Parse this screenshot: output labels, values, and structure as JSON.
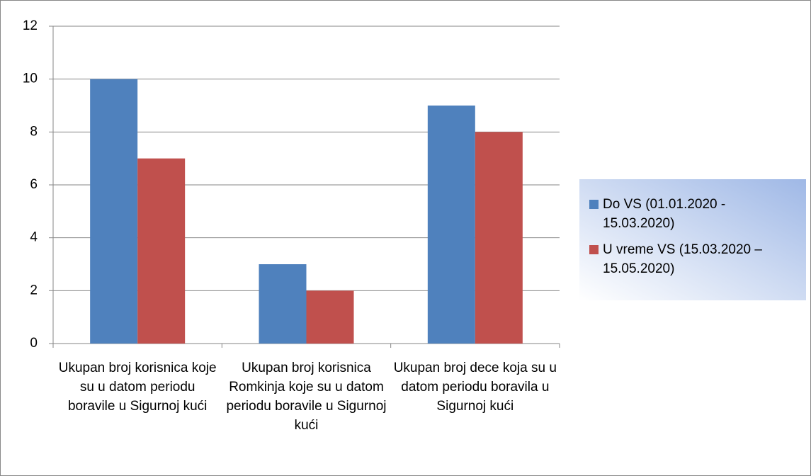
{
  "chart_data": {
    "type": "bar",
    "categories": [
      "Ukupan broj korisnica koje su u datom periodu boravile u Sigurnoj kući",
      "Ukupan broj korisnica Romkinja koje su u datom periodu boravile u Sigurnoj kući",
      "Ukupan broj dece koja su u datom periodu boravila u Sigurnoj kući"
    ],
    "series": [
      {
        "name": "Do VS (01.01.2020  - 15.03.2020)",
        "color": "#4f81bd",
        "values": [
          10,
          3,
          9
        ]
      },
      {
        "name": "U vreme VS (15.03.2020 – 15.05.2020)",
        "color": "#c0504d",
        "values": [
          7,
          2,
          8
        ]
      }
    ],
    "ylim": [
      0,
      12
    ],
    "yticks": [
      0,
      2,
      4,
      6,
      8,
      10,
      12
    ],
    "grid": true,
    "legend": "right"
  }
}
